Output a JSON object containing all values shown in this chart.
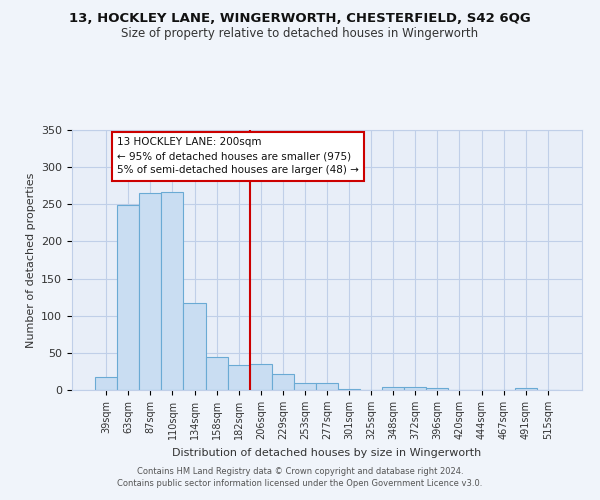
{
  "title": "13, HOCKLEY LANE, WINGERWORTH, CHESTERFIELD, S42 6QG",
  "subtitle": "Size of property relative to detached houses in Wingerworth",
  "xlabel": "Distribution of detached houses by size in Wingerworth",
  "ylabel": "Number of detached properties",
  "bar_labels": [
    "39sqm",
    "63sqm",
    "87sqm",
    "110sqm",
    "134sqm",
    "158sqm",
    "182sqm",
    "206sqm",
    "229sqm",
    "253sqm",
    "277sqm",
    "301sqm",
    "325sqm",
    "348sqm",
    "372sqm",
    "396sqm",
    "420sqm",
    "444sqm",
    "467sqm",
    "491sqm",
    "515sqm"
  ],
  "bar_values": [
    18,
    249,
    265,
    267,
    117,
    45,
    34,
    35,
    22,
    10,
    9,
    2,
    0,
    4,
    4,
    3,
    0,
    0,
    0,
    3,
    0
  ],
  "bar_color": "#c9ddf2",
  "bar_edge_color": "#6aaad4",
  "vline_color": "#cc0000",
  "annotation_title": "13 HOCKLEY LANE: 200sqm",
  "annotation_line1": "← 95% of detached houses are smaller (975)",
  "annotation_line2": "5% of semi-detached houses are larger (48) →",
  "annotation_box_color": "#cc0000",
  "ylim": [
    0,
    350
  ],
  "yticks": [
    0,
    50,
    100,
    150,
    200,
    250,
    300,
    350
  ],
  "footer_line1": "Contains HM Land Registry data © Crown copyright and database right 2024.",
  "footer_line2": "Contains public sector information licensed under the Open Government Licence v3.0.",
  "background_color": "#f0f4fa",
  "plot_bg_color": "#e8eef8",
  "grid_color": "#c0cfe8",
  "title_color": "#111111",
  "subtitle_color": "#333333"
}
